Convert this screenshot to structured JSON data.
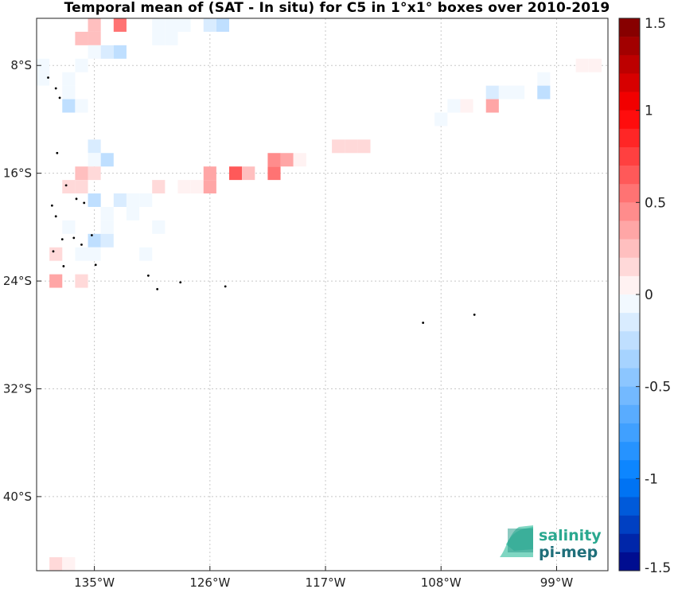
{
  "chart_data": {
    "type": "heatmap",
    "title": "Temporal mean of (SAT - In situ) for C5 in 1°x1° boxes over 2010-2019",
    "x_ticks": [
      "135°W",
      "126°W",
      "117°W",
      "108°W",
      "99°W"
    ],
    "y_ticks": [
      "8°S",
      "16°S",
      "24°S",
      "32°S",
      "40°S"
    ],
    "xlim": [
      -139.5,
      -95.0
    ],
    "ylim": [
      -45.5,
      -4.5
    ],
    "colorbar": {
      "min": -1.5,
      "max": 1.5,
      "step": 0.1,
      "tick_labels": [
        "1.5",
        "1",
        "0.5",
        "0",
        "-0.5",
        "-1",
        "-1.5"
      ]
    },
    "cells": [
      {
        "lon": -135,
        "lat": -5,
        "v": 0.3
      },
      {
        "lon": -133,
        "lat": -5,
        "v": 0.6
      },
      {
        "lon": -136,
        "lat": -6,
        "v": 0.3
      },
      {
        "lon": -135,
        "lat": -6,
        "v": 0.3
      },
      {
        "lon": -130,
        "lat": -5,
        "v": -0.1
      },
      {
        "lon": -129,
        "lat": -5,
        "v": -0.1
      },
      {
        "lon": -128,
        "lat": -5,
        "v": -0.1
      },
      {
        "lon": -126,
        "lat": -5,
        "v": -0.2
      },
      {
        "lon": -125,
        "lat": -5,
        "v": -0.3
      },
      {
        "lon": -130,
        "lat": -6,
        "v": -0.1
      },
      {
        "lon": -129,
        "lat": -6,
        "v": -0.1
      },
      {
        "lon": -135,
        "lat": -7,
        "v": -0.1
      },
      {
        "lon": -134,
        "lat": -7,
        "v": -0.2
      },
      {
        "lon": -133,
        "lat": -7,
        "v": -0.3
      },
      {
        "lon": -139,
        "lat": -8,
        "v": -0.1
      },
      {
        "lon": -136,
        "lat": -8,
        "v": -0.1
      },
      {
        "lon": -139,
        "lat": -9,
        "v": -0.1
      },
      {
        "lon": -137,
        "lat": -9,
        "v": -0.1
      },
      {
        "lon": -137,
        "lat": -10,
        "v": -0.1
      },
      {
        "lon": -137,
        "lat": -11,
        "v": -0.3
      },
      {
        "lon": -136,
        "lat": -11,
        "v": -0.1
      },
      {
        "lon": -135,
        "lat": -14,
        "v": -0.2
      },
      {
        "lon": -135,
        "lat": -15,
        "v": -0.1
      },
      {
        "lon": -134,
        "lat": -15,
        "v": -0.3
      },
      {
        "lon": -136,
        "lat": -16,
        "v": 0.3
      },
      {
        "lon": -135,
        "lat": -16,
        "v": 0.2
      },
      {
        "lon": -137,
        "lat": -17,
        "v": 0.2
      },
      {
        "lon": -136,
        "lat": -17,
        "v": 0.2
      },
      {
        "lon": -135,
        "lat": -18,
        "v": -0.3
      },
      {
        "lon": -133,
        "lat": -18,
        "v": -0.2
      },
      {
        "lon": -132,
        "lat": -18,
        "v": -0.1
      },
      {
        "lon": -131,
        "lat": -18,
        "v": -0.1
      },
      {
        "lon": -132,
        "lat": -19,
        "v": -0.1
      },
      {
        "lon": -134,
        "lat": -19,
        "v": -0.1
      },
      {
        "lon": -137,
        "lat": -20,
        "v": -0.1
      },
      {
        "lon": -134,
        "lat": -20,
        "v": -0.1
      },
      {
        "lon": -130,
        "lat": -20,
        "v": -0.1
      },
      {
        "lon": -135,
        "lat": -21,
        "v": -0.3
      },
      {
        "lon": -134,
        "lat": -21,
        "v": -0.2
      },
      {
        "lon": -138,
        "lat": -22,
        "v": 0.2
      },
      {
        "lon": -136,
        "lat": -22,
        "v": -0.1
      },
      {
        "lon": -135,
        "lat": -22,
        "v": -0.1
      },
      {
        "lon": -131,
        "lat": -22,
        "v": -0.1
      },
      {
        "lon": -138,
        "lat": -24,
        "v": 0.4
      },
      {
        "lon": -136,
        "lat": -24,
        "v": 0.2
      },
      {
        "lon": -130,
        "lat": -17,
        "v": 0.2
      },
      {
        "lon": -128,
        "lat": -17,
        "v": 0.1
      },
      {
        "lon": -127,
        "lat": -17,
        "v": 0.1
      },
      {
        "lon": -126,
        "lat": -16,
        "v": 0.4
      },
      {
        "lon": -126,
        "lat": -17,
        "v": 0.4
      },
      {
        "lon": -124,
        "lat": -16,
        "v": 0.7
      },
      {
        "lon": -123,
        "lat": -16,
        "v": 0.3
      },
      {
        "lon": -121,
        "lat": -15,
        "v": 0.5
      },
      {
        "lon": -120,
        "lat": -15,
        "v": 0.4
      },
      {
        "lon": -121,
        "lat": -16,
        "v": 0.6
      },
      {
        "lon": -119,
        "lat": -15,
        "v": 0.1
      },
      {
        "lon": -116,
        "lat": -14,
        "v": 0.2
      },
      {
        "lon": -115,
        "lat": -14,
        "v": 0.2
      },
      {
        "lon": -114,
        "lat": -14,
        "v": 0.2
      },
      {
        "lon": -100,
        "lat": -9,
        "v": -0.1
      },
      {
        "lon": -104,
        "lat": -10,
        "v": -0.2
      },
      {
        "lon": -103,
        "lat": -10,
        "v": -0.1
      },
      {
        "lon": -102,
        "lat": -10,
        "v": -0.1
      },
      {
        "lon": -100,
        "lat": -10,
        "v": -0.3
      },
      {
        "lon": -107,
        "lat": -11,
        "v": -0.1
      },
      {
        "lon": -106,
        "lat": -11,
        "v": 0.1
      },
      {
        "lon": -104,
        "lat": -11,
        "v": 0.4
      },
      {
        "lon": -108,
        "lat": -12,
        "v": -0.1
      },
      {
        "lon": -97,
        "lat": -8,
        "v": 0.1
      },
      {
        "lon": -96,
        "lat": -8,
        "v": 0.1
      },
      {
        "lon": -138,
        "lat": -45,
        "v": 0.2
      },
      {
        "lon": -137,
        "lat": -45,
        "v": 0.1
      }
    ],
    "islands": [
      {
        "lon": -138.6,
        "lat": -8.9
      },
      {
        "lon": -138.0,
        "lat": -9.7
      },
      {
        "lon": -137.7,
        "lat": -10.4
      },
      {
        "lon": -137.9,
        "lat": -14.5
      },
      {
        "lon": -137.2,
        "lat": -16.9
      },
      {
        "lon": -136.4,
        "lat": -17.9
      },
      {
        "lon": -135.8,
        "lat": -18.2
      },
      {
        "lon": -138.3,
        "lat": -18.4
      },
      {
        "lon": -138.0,
        "lat": -19.2
      },
      {
        "lon": -137.5,
        "lat": -20.9
      },
      {
        "lon": -136.6,
        "lat": -20.8
      },
      {
        "lon": -136.0,
        "lat": -21.3
      },
      {
        "lon": -135.2,
        "lat": -20.6
      },
      {
        "lon": -138.2,
        "lat": -21.8
      },
      {
        "lon": -137.4,
        "lat": -22.9
      },
      {
        "lon": -134.9,
        "lat": -22.8
      },
      {
        "lon": -130.8,
        "lat": -23.6
      },
      {
        "lon": -130.1,
        "lat": -24.6
      },
      {
        "lon": -128.3,
        "lat": -24.1
      },
      {
        "lon": -124.8,
        "lat": -24.4
      },
      {
        "lon": -109.4,
        "lat": -27.1
      },
      {
        "lon": -105.4,
        "lat": -26.5
      }
    ]
  },
  "logo": {
    "line1": "salinity",
    "line2": "pi-mep"
  }
}
